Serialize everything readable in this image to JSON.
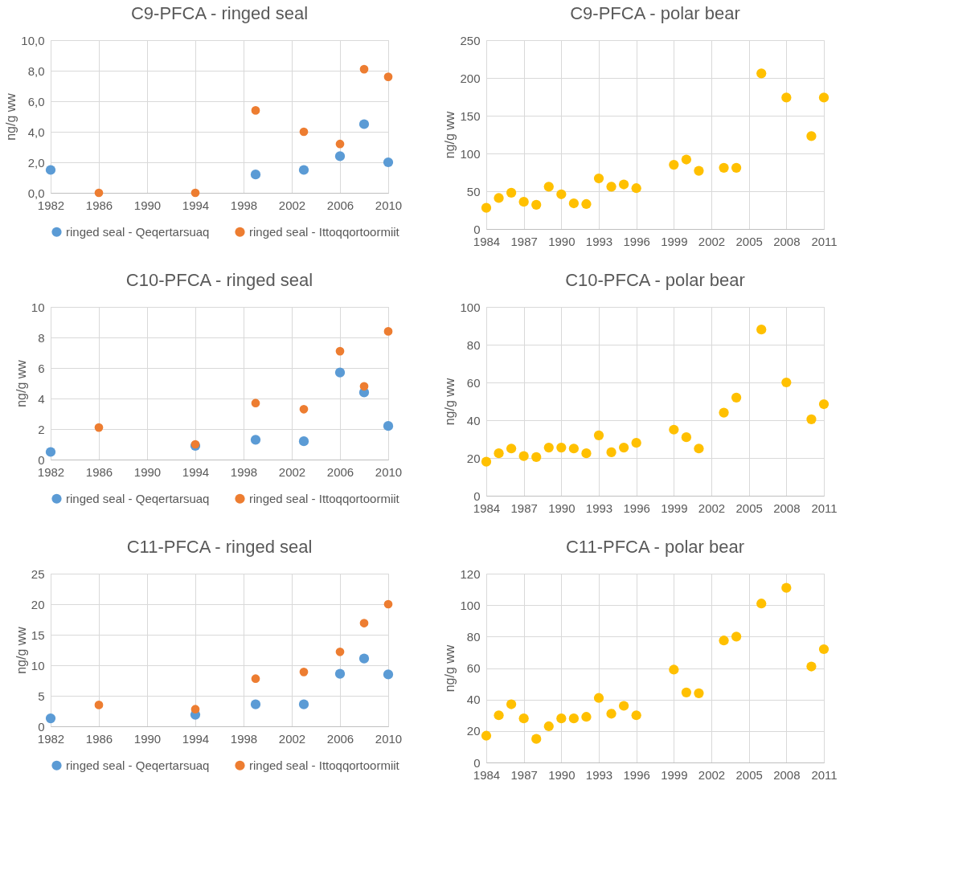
{
  "chart_data": [
    {
      "type": "scatter",
      "title": "C9-PFCA - ringed seal",
      "ylabel": "ng/g ww",
      "marker": "circle",
      "grid": true,
      "legend": "bottom",
      "xlim": [
        1982,
        2010
      ],
      "xticks": [
        1982,
        1986,
        1990,
        1994,
        1998,
        2002,
        2006,
        2010
      ],
      "ylim": [
        0,
        10
      ],
      "yticks": [
        {
          "value": 0,
          "label": "0,0"
        },
        {
          "value": 2,
          "label": "2,0"
        },
        {
          "value": 4,
          "label": "4,0"
        },
        {
          "value": 6,
          "label": "6,0"
        },
        {
          "value": 8,
          "label": "8,0"
        },
        {
          "value": 10,
          "label": "10,0"
        }
      ],
      "series": [
        {
          "name": "ringed seal - Qeqertarsuaq",
          "color": "#5b9bd5",
          "x": [
            1982,
            1999,
            2003,
            2006,
            2008,
            2010
          ],
          "values": [
            1.5,
            1.2,
            1.5,
            2.4,
            4.5,
            2.0
          ]
        },
        {
          "name": "ringed seal - Ittoqqortoormiit",
          "color": "#ed7d31",
          "x": [
            1986,
            1994,
            1999,
            2003,
            2006,
            2008,
            2010
          ],
          "values": [
            0.0,
            0.0,
            5.4,
            4.0,
            3.2,
            8.1,
            7.6
          ]
        }
      ]
    },
    {
      "type": "scatter",
      "title": "C9-PFCA - polar bear",
      "ylabel": "ng/g ww",
      "marker": "circle",
      "grid": true,
      "xlim": [
        1984,
        2011
      ],
      "xticks": [
        1984,
        1987,
        1990,
        1993,
        1996,
        1999,
        2002,
        2005,
        2008,
        2011
      ],
      "ylim": [
        0,
        250
      ],
      "yticks": [
        0,
        50,
        100,
        150,
        200,
        250
      ],
      "series": [
        {
          "color": "#ffc000",
          "x": [
            1984,
            1985,
            1986,
            1987,
            1988,
            1989,
            1990,
            1991,
            1992,
            1993,
            1994,
            1995,
            1996,
            1999,
            2000,
            2001,
            2003,
            2004,
            2006,
            2008,
            2010,
            2011
          ],
          "values": [
            28,
            41,
            48,
            36,
            32,
            56,
            46,
            34,
            33,
            67,
            56,
            59,
            54,
            85,
            92,
            77,
            81,
            81,
            206,
            174,
            123,
            174
          ]
        }
      ]
    },
    {
      "type": "scatter",
      "title": "C10-PFCA - ringed seal",
      "ylabel": "ng/g ww",
      "marker": "circle",
      "grid": true,
      "legend": "bottom",
      "xlim": [
        1982,
        2010
      ],
      "xticks": [
        1982,
        1986,
        1990,
        1994,
        1998,
        2002,
        2006,
        2010
      ],
      "ylim": [
        0,
        10
      ],
      "yticks": [
        0,
        2,
        4,
        6,
        8,
        10
      ],
      "series": [
        {
          "name": "ringed seal - Qeqertarsuaq",
          "color": "#5b9bd5",
          "x": [
            1982,
            1994,
            1999,
            2003,
            2006,
            2008,
            2010
          ],
          "values": [
            0.5,
            0.9,
            1.3,
            1.2,
            5.7,
            4.4,
            2.2
          ]
        },
        {
          "name": "ringed seal - Ittoqqortoormiit",
          "color": "#ed7d31",
          "x": [
            1986,
            1994,
            1999,
            2003,
            2006,
            2008,
            2010
          ],
          "values": [
            2.1,
            1.0,
            3.7,
            3.3,
            7.1,
            4.8,
            8.4
          ]
        }
      ]
    },
    {
      "type": "scatter",
      "title": "C10-PFCA - polar bear",
      "ylabel": "ng/g ww",
      "marker": "circle",
      "grid": true,
      "xlim": [
        1984,
        2011
      ],
      "xticks": [
        1984,
        1987,
        1990,
        1993,
        1996,
        1999,
        2002,
        2005,
        2008,
        2011
      ],
      "ylim": [
        0,
        100
      ],
      "yticks": [
        0,
        20,
        40,
        60,
        80,
        100
      ],
      "series": [
        {
          "color": "#ffc000",
          "x": [
            1984,
            1985,
            1986,
            1987,
            1988,
            1989,
            1990,
            1991,
            1992,
            1993,
            1994,
            1995,
            1996,
            1999,
            2000,
            2001,
            2003,
            2004,
            2006,
            2008,
            2010,
            2011
          ],
          "values": [
            18,
            22.5,
            25,
            21,
            20.5,
            25.5,
            25.5,
            25,
            22.5,
            32,
            23,
            25.5,
            28,
            35,
            31,
            25,
            44,
            52,
            88,
            60,
            40.5,
            48.5
          ]
        }
      ]
    },
    {
      "type": "scatter",
      "title": "C11-PFCA - ringed seal",
      "ylabel": "ng/g ww",
      "marker": "circle",
      "grid": true,
      "legend": "bottom",
      "xlim": [
        1982,
        2010
      ],
      "xticks": [
        1982,
        1986,
        1990,
        1994,
        1998,
        2002,
        2006,
        2010
      ],
      "ylim": [
        0,
        25
      ],
      "yticks": [
        0,
        5,
        10,
        15,
        20,
        25
      ],
      "series": [
        {
          "name": "ringed seal - Qeqertarsuaq",
          "color": "#5b9bd5",
          "x": [
            1982,
            1994,
            1999,
            2003,
            2006,
            2008,
            2010
          ],
          "values": [
            1.3,
            1.9,
            3.6,
            3.6,
            8.6,
            11.1,
            8.5
          ]
        },
        {
          "name": "ringed seal - Ittoqqortoormiit",
          "color": "#ed7d31",
          "x": [
            1986,
            1994,
            1999,
            2003,
            2006,
            2008,
            2010
          ],
          "values": [
            3.5,
            2.8,
            7.8,
            8.9,
            12.2,
            16.9,
            20.0
          ]
        }
      ]
    },
    {
      "type": "scatter",
      "title": "C11-PFCA - polar bear",
      "ylabel": "ng/g ww",
      "marker": "circle",
      "grid": true,
      "xlim": [
        1984,
        2011
      ],
      "xticks": [
        1984,
        1987,
        1990,
        1993,
        1996,
        1999,
        2002,
        2005,
        2008,
        2011
      ],
      "ylim": [
        0,
        120
      ],
      "yticks": [
        0,
        20,
        40,
        60,
        80,
        100,
        120
      ],
      "series": [
        {
          "color": "#ffc000",
          "x": [
            1984,
            1985,
            1986,
            1987,
            1988,
            1989,
            1990,
            1991,
            1992,
            1993,
            1994,
            1995,
            1996,
            1999,
            2000,
            2001,
            2003,
            2004,
            2006,
            2008,
            2010,
            2011
          ],
          "values": [
            17,
            30,
            37,
            28,
            15,
            23,
            28,
            28,
            29,
            41,
            31,
            36,
            30,
            59,
            44.5,
            44,
            77.5,
            80,
            101,
            111,
            61,
            72
          ]
        }
      ]
    }
  ]
}
